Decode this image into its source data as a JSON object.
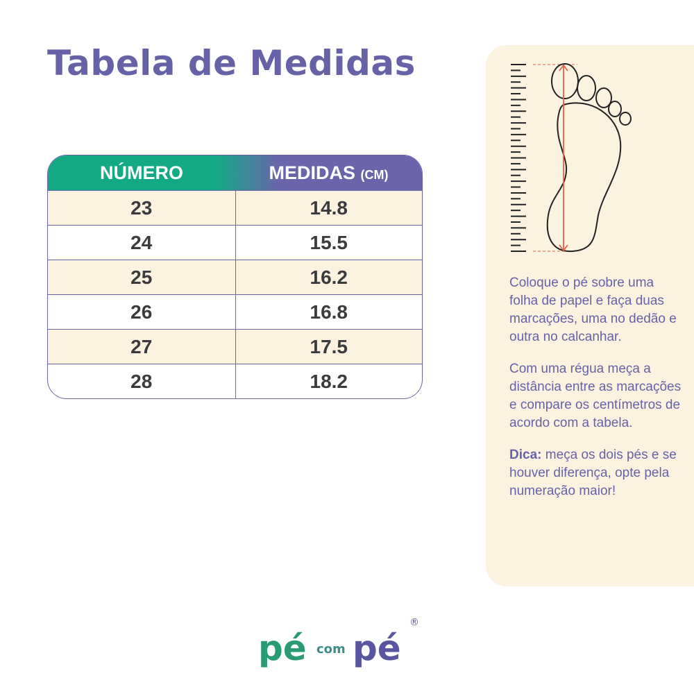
{
  "title": "Tabela de Medidas",
  "table": {
    "headers": {
      "numero": "NÚMERO",
      "medidas": "MEDIDAS",
      "unit": "(CM)"
    },
    "rows": [
      {
        "numero": "23",
        "medida": "14.8"
      },
      {
        "numero": "24",
        "medida": "15.5"
      },
      {
        "numero": "25",
        "medida": "16.2"
      },
      {
        "numero": "26",
        "medida": "16.8"
      },
      {
        "numero": "27",
        "medida": "17.5"
      },
      {
        "numero": "28",
        "medida": "18.2"
      }
    ]
  },
  "instructions": {
    "p1": "Coloque o pé sobre uma folha de papel e faça duas marcações, uma no dedão e outra no calcanhar.",
    "p2": "Com uma régua meça a distância entre as marcações e compare os centímetros de acordo com a tabela.",
    "tip_label": "Dica:",
    "tip": " meça os dois pés e se houver diferença, opte pela numeração maior!"
  },
  "logo": {
    "text": "pé com pé",
    "registered": "®"
  },
  "colors": {
    "purple": "#6762a8",
    "green": "#13a985",
    "cream": "#fbf3e0",
    "arrow": "#e8604a"
  }
}
